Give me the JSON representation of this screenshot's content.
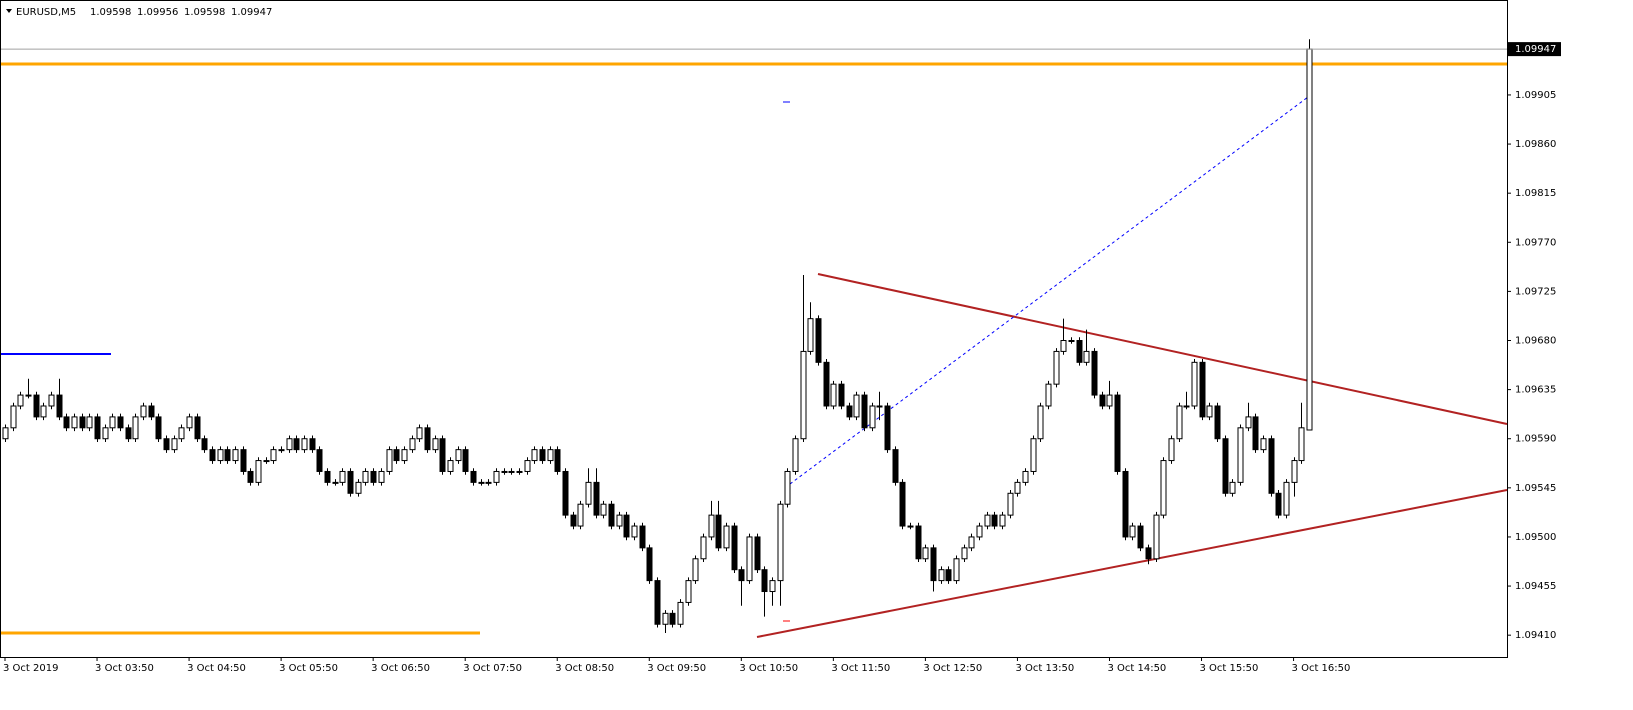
{
  "chart_data": {
    "type": "candlestick",
    "title": "EURUSD,M5",
    "categories": [
      "3 Oct 2019",
      null,
      null,
      null,
      null,
      null,
      null,
      null,
      null,
      null,
      null,
      null,
      "3 Oct 03:50",
      null,
      null,
      null,
      null,
      null,
      null,
      null,
      null,
      null,
      null,
      null,
      "3 Oct 04:50",
      null,
      null,
      null,
      null,
      null,
      null,
      null,
      null,
      null,
      null,
      null,
      "3 Oct 05:50",
      null,
      null,
      null,
      null,
      null,
      null,
      null,
      null,
      null,
      null,
      null,
      "3 Oct 06:50",
      null,
      null,
      null,
      null,
      null,
      null,
      null,
      null,
      null,
      null,
      null,
      "3 Oct 07:50",
      null,
      null,
      null,
      null,
      null,
      null,
      null,
      null,
      null,
      null,
      null,
      "3 Oct 08:50",
      null,
      null,
      null,
      null,
      null,
      null,
      null,
      null,
      null,
      null,
      null,
      "3 Oct 09:50",
      null,
      null,
      null,
      null,
      null,
      null,
      null,
      null,
      null,
      null,
      null,
      "3 Oct 10:50",
      null,
      null,
      null,
      null,
      null,
      null,
      null,
      null,
      null,
      null,
      null,
      "3 Oct 11:50",
      null,
      null,
      null,
      null,
      null,
      null,
      null,
      null,
      null,
      null,
      null,
      "3 Oct 12:50",
      null,
      null,
      null,
      null,
      null,
      null,
      null,
      null,
      null,
      null,
      null,
      "3 Oct 13:50",
      null,
      null,
      null,
      null,
      null,
      null,
      null,
      null,
      null,
      null,
      null,
      "3 Oct 14:50",
      null,
      null,
      null,
      null,
      null,
      null,
      null,
      null,
      null,
      null,
      null,
      "3 Oct 15:50",
      null,
      null,
      null,
      null,
      null,
      null,
      null,
      null,
      null,
      null,
      null,
      "3 Oct 16:50",
      null,
      null
    ],
    "open": [
      1.0959,
      1.096,
      1.0962,
      1.0963,
      1.0963,
      1.0961,
      1.0962,
      1.0963,
      1.0961,
      1.096,
      1.0961,
      1.096,
      1.0961,
      1.0959,
      1.096,
      1.0961,
      1.096,
      1.0959,
      1.0961,
      1.0962,
      1.0961,
      1.0959,
      1.0958,
      1.0959,
      1.096,
      1.0961,
      1.0959,
      1.0958,
      1.0957,
      1.0958,
      1.0957,
      1.0958,
      1.0956,
      1.0955,
      1.0957,
      1.0957,
      1.0958,
      1.0958,
      1.0959,
      1.0958,
      1.0959,
      1.0958,
      1.0956,
      1.0955,
      1.0955,
      1.0956,
      1.0954,
      1.0955,
      1.0956,
      1.0955,
      1.0956,
      1.0958,
      1.0957,
      1.0958,
      1.0959,
      1.096,
      1.0958,
      1.0959,
      1.0956,
      1.0957,
      1.0958,
      1.0956,
      1.0955,
      1.0955,
      1.0955,
      1.0956,
      1.0956,
      1.0956,
      1.0956,
      1.0957,
      1.0958,
      1.0957,
      1.0958,
      1.0956,
      1.0952,
      1.0951,
      1.0953,
      1.0955,
      1.0952,
      1.0953,
      1.0951,
      1.0952,
      1.095,
      1.0951,
      1.0949,
      1.0946,
      1.0942,
      1.0943,
      1.0942,
      1.0944,
      1.0946,
      1.0948,
      1.095,
      1.0952,
      1.0949,
      1.0951,
      1.0947,
      1.0946,
      1.095,
      1.0947,
      1.0945,
      1.0946,
      1.0953,
      1.0956,
      1.0959,
      1.0967,
      1.097,
      1.0966,
      1.0962,
      1.0964,
      1.0962,
      1.0961,
      1.0963,
      1.096,
      1.0962,
      1.0962,
      1.0958,
      1.0955,
      1.0951,
      1.0951,
      1.0948,
      1.0949,
      1.0946,
      1.0947,
      1.0946,
      1.0948,
      1.0949,
      1.095,
      1.0951,
      1.0952,
      1.0951,
      1.0952,
      1.0954,
      1.0955,
      1.0956,
      1.0959,
      1.0962,
      1.0964,
      1.0967,
      1.0968,
      1.0968,
      1.0966,
      1.0967,
      1.0963,
      1.0962,
      1.0963,
      1.0956,
      1.095,
      1.0951,
      1.0949,
      1.0948,
      1.0952,
      1.0957,
      1.0959,
      1.0962,
      1.0962,
      1.0966,
      1.0961,
      1.0962,
      1.0959,
      1.0954,
      1.0955,
      1.096,
      1.0961,
      1.0958,
      1.0959,
      1.0954,
      1.0952,
      1.0955,
      1.0957,
      1.09598
    ],
    "high": [
      1.09603,
      1.09623,
      1.09633,
      1.09645,
      1.09633,
      1.09623,
      1.09633,
      1.09645,
      1.09613,
      1.09613,
      1.09613,
      1.09613,
      1.09613,
      1.09603,
      1.09613,
      1.09613,
      1.09603,
      1.09613,
      1.09623,
      1.09623,
      1.09613,
      1.09593,
      1.09593,
      1.09603,
      1.09613,
      1.09613,
      1.09593,
      1.09583,
      1.09583,
      1.09583,
      1.09583,
      1.09583,
      1.09563,
      1.09573,
      1.09573,
      1.09583,
      1.09583,
      1.09593,
      1.09593,
      1.09593,
      1.09593,
      1.09583,
      1.09563,
      1.09553,
      1.09563,
      1.09563,
      1.09553,
      1.09563,
      1.09563,
      1.09563,
      1.09583,
      1.09583,
      1.09583,
      1.09593,
      1.09603,
      1.09603,
      1.09593,
      1.09593,
      1.09573,
      1.09583,
      1.09583,
      1.09563,
      1.09553,
      1.09553,
      1.09563,
      1.09563,
      1.09563,
      1.09563,
      1.09573,
      1.09583,
      1.09583,
      1.09583,
      1.09583,
      1.09563,
      1.09523,
      1.09533,
      1.09563,
      1.09563,
      1.09533,
      1.09533,
      1.09523,
      1.09523,
      1.09513,
      1.09513,
      1.09493,
      1.09463,
      1.09433,
      1.09433,
      1.09443,
      1.09463,
      1.09483,
      1.09503,
      1.09533,
      1.09533,
      1.09513,
      1.09513,
      1.09473,
      1.09503,
      1.09503,
      1.09473,
      1.09463,
      1.09533,
      1.09563,
      1.09593,
      1.0974,
      1.09715,
      1.09703,
      1.09663,
      1.09643,
      1.09643,
      1.09623,
      1.09633,
      1.09633,
      1.09623,
      1.09633,
      1.09623,
      1.09583,
      1.09553,
      1.09513,
      1.09513,
      1.09493,
      1.09493,
      1.09473,
      1.09473,
      1.09483,
      1.09493,
      1.09503,
      1.09513,
      1.09523,
      1.09523,
      1.09523,
      1.09543,
      1.09553,
      1.09563,
      1.09593,
      1.09623,
      1.09643,
      1.09673,
      1.097,
      1.09683,
      1.09683,
      1.0969,
      1.09673,
      1.09633,
      1.09643,
      1.09633,
      1.09563,
      1.09513,
      1.09513,
      1.09493,
      1.09523,
      1.09573,
      1.09593,
      1.09623,
      1.09633,
      1.09663,
      1.09663,
      1.09623,
      1.09623,
      1.09593,
      1.09553,
      1.09603,
      1.09623,
      1.09613,
      1.09593,
      1.09593,
      1.09543,
      1.09553,
      1.09573,
      1.09623,
      1.09956
    ],
    "low": [
      1.09587,
      1.09597,
      1.09617,
      1.09627,
      1.09607,
      1.09607,
      1.09617,
      1.09607,
      1.09597,
      1.09597,
      1.09597,
      1.09597,
      1.09587,
      1.09587,
      1.09597,
      1.09597,
      1.09587,
      1.09587,
      1.09607,
      1.09607,
      1.09587,
      1.09577,
      1.09577,
      1.09587,
      1.09597,
      1.09587,
      1.09577,
      1.09567,
      1.09567,
      1.09567,
      1.09567,
      1.09557,
      1.09547,
      1.09547,
      1.09567,
      1.09567,
      1.09577,
      1.09577,
      1.09577,
      1.09577,
      1.09577,
      1.09557,
      1.09547,
      1.09547,
      1.09547,
      1.09537,
      1.09537,
      1.09547,
      1.09547,
      1.09547,
      1.09557,
      1.09567,
      1.09567,
      1.09577,
      1.09587,
      1.09577,
      1.09577,
      1.09557,
      1.09557,
      1.09567,
      1.09557,
      1.09547,
      1.09547,
      1.09547,
      1.09547,
      1.09557,
      1.09557,
      1.09557,
      1.09557,
      1.09567,
      1.09567,
      1.09567,
      1.09557,
      1.09517,
      1.09507,
      1.09507,
      1.09527,
      1.09517,
      1.09517,
      1.09507,
      1.09507,
      1.09497,
      1.09497,
      1.09487,
      1.09457,
      1.09417,
      1.09412,
      1.09417,
      1.09417,
      1.09437,
      1.09457,
      1.09477,
      1.09497,
      1.09487,
      1.09487,
      1.09467,
      1.09437,
      1.09457,
      1.09467,
      1.09427,
      1.09437,
      1.09437,
      1.09527,
      1.09557,
      1.09587,
      1.09667,
      1.09657,
      1.09617,
      1.09617,
      1.09617,
      1.09607,
      1.09607,
      1.09597,
      1.09597,
      1.09607,
      1.09577,
      1.09547,
      1.09507,
      1.09507,
      1.09477,
      1.09477,
      1.0945,
      1.09457,
      1.09457,
      1.09457,
      1.09477,
      1.09487,
      1.09497,
      1.09507,
      1.09507,
      1.09507,
      1.09517,
      1.09537,
      1.09547,
      1.09557,
      1.09587,
      1.09617,
      1.09637,
      1.09667,
      1.09677,
      1.09657,
      1.09657,
      1.09627,
      1.09617,
      1.09617,
      1.09557,
      1.09497,
      1.09497,
      1.09487,
      1.09475,
      1.09477,
      1.09517,
      1.09567,
      1.09587,
      1.09617,
      1.09617,
      1.09607,
      1.09607,
      1.09587,
      1.09537,
      1.09537,
      1.09547,
      1.09597,
      1.09577,
      1.09577,
      1.09537,
      1.09517,
      1.09517,
      1.09537,
      1.09567,
      1.09598
    ],
    "close": [
      1.096,
      1.0962,
      1.0963,
      1.0963,
      1.0961,
      1.0962,
      1.0963,
      1.0961,
      1.096,
      1.0961,
      1.096,
      1.0961,
      1.0959,
      1.096,
      1.0961,
      1.096,
      1.0959,
      1.0961,
      1.0962,
      1.0961,
      1.0959,
      1.0958,
      1.0959,
      1.096,
      1.0961,
      1.0959,
      1.0958,
      1.0957,
      1.0958,
      1.0957,
      1.0958,
      1.0956,
      1.0955,
      1.0957,
      1.0957,
      1.0958,
      1.0958,
      1.0959,
      1.0958,
      1.0959,
      1.0958,
      1.0956,
      1.0955,
      1.0955,
      1.0956,
      1.0954,
      1.0955,
      1.0956,
      1.0955,
      1.0956,
      1.0958,
      1.0957,
      1.0958,
      1.0959,
      1.096,
      1.0958,
      1.0959,
      1.0956,
      1.0957,
      1.0958,
      1.0956,
      1.0955,
      1.0955,
      1.0955,
      1.0956,
      1.0956,
      1.0956,
      1.0956,
      1.0957,
      1.0958,
      1.0957,
      1.0958,
      1.0956,
      1.0952,
      1.0951,
      1.0953,
      1.0955,
      1.0952,
      1.0953,
      1.0951,
      1.0952,
      1.095,
      1.0951,
      1.0949,
      1.0946,
      1.0942,
      1.0943,
      1.0942,
      1.0944,
      1.0946,
      1.0948,
      1.095,
      1.0952,
      1.0949,
      1.0951,
      1.0947,
      1.0946,
      1.095,
      1.0947,
      1.0945,
      1.0946,
      1.0953,
      1.0956,
      1.0959,
      1.0967,
      1.097,
      1.0966,
      1.0962,
      1.0964,
      1.0962,
      1.0961,
      1.0963,
      1.096,
      1.0962,
      1.0962,
      1.0958,
      1.0955,
      1.0951,
      1.0951,
      1.0948,
      1.0949,
      1.0946,
      1.0947,
      1.0946,
      1.0948,
      1.0949,
      1.095,
      1.0951,
      1.0952,
      1.0951,
      1.0952,
      1.0954,
      1.0955,
      1.0956,
      1.0959,
      1.0962,
      1.0964,
      1.0967,
      1.0968,
      1.0968,
      1.0966,
      1.0967,
      1.0963,
      1.0962,
      1.0963,
      1.0956,
      1.095,
      1.0951,
      1.0949,
      1.0948,
      1.0952,
      1.0957,
      1.0959,
      1.0962,
      1.0962,
      1.0966,
      1.0961,
      1.0962,
      1.0959,
      1.0954,
      1.0955,
      1.096,
      1.0961,
      1.0958,
      1.0959,
      1.0954,
      1.0952,
      1.0955,
      1.0957,
      1.096,
      1.09947
    ],
    "ylim": [
      1.0939,
      1.09992
    ],
    "yticks": [
      1.09905,
      {
        "value": 1.0986,
        "label": "1.09860"
      },
      1.09815,
      {
        "value": 1.0977,
        "label": "1.09770"
      },
      1.09725,
      {
        "value": 1.0968,
        "label": "1.09680"
      },
      1.09635,
      {
        "value": 1.0959,
        "label": "1.09590"
      },
      1.09545,
      {
        "value": 1.095,
        "label": "1.09500"
      },
      1.09455,
      {
        "value": 1.0941,
        "label": "1.09410"
      }
    ],
    "up_color": "#ffffff",
    "down_color": "#000000"
  }
}
